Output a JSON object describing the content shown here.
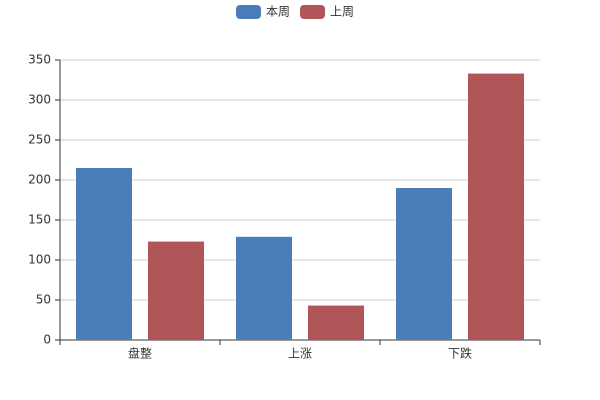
{
  "chart_data": {
    "type": "bar",
    "categories": [
      "盘整",
      "上涨",
      "下跌"
    ],
    "series": [
      {
        "name": "本周",
        "color": "#4a7ebb",
        "values": [
          215,
          129,
          190
        ]
      },
      {
        "name": "上周",
        "color": "#b05558",
        "values": [
          123,
          43,
          333
        ]
      }
    ],
    "ylim": [
      0,
      350
    ],
    "yticks": [
      0,
      50,
      100,
      150,
      200,
      250,
      300,
      350
    ],
    "grid": true,
    "legend": "top"
  }
}
